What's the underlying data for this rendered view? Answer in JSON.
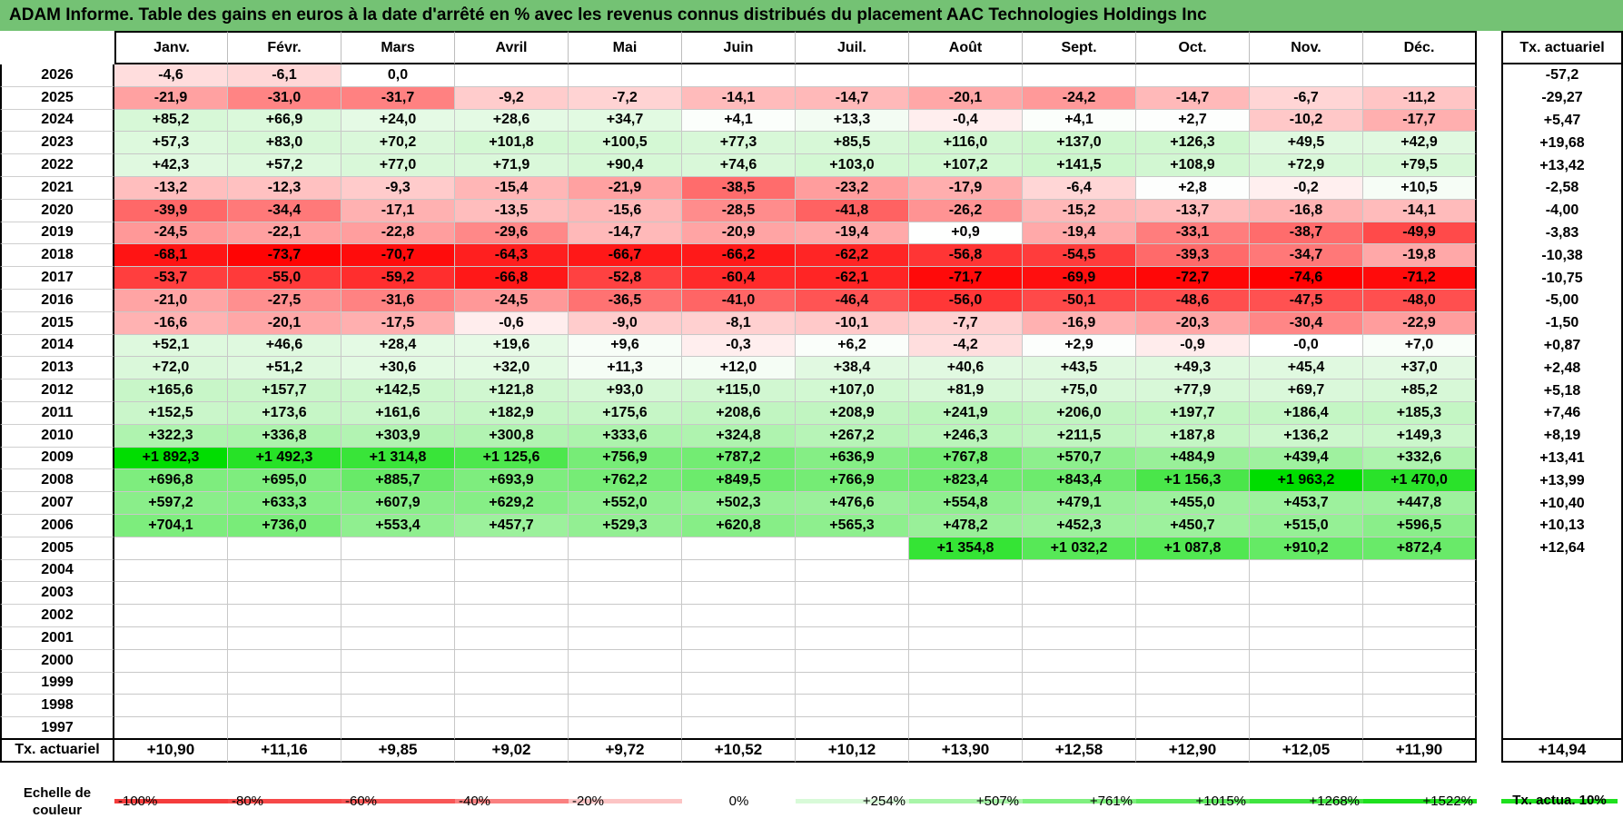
{
  "title": "ADAM Informe. Table des gains en euros à la date d'arrêté en % avec les revenus connus distribués du placement AAC Technologies Holdings Inc",
  "months": [
    "Janv.",
    "Févr.",
    "Mars",
    "Avril",
    "Mai",
    "Juin",
    "Juil.",
    "Août",
    "Sept.",
    "Oct.",
    "Nov.",
    "Déc."
  ],
  "total_header": "Tx. actuariel",
  "rows": [
    {
      "year": "2026",
      "values": [
        "-4,6",
        "-6,1",
        "0,0",
        "",
        "",
        "",
        "",
        "",
        "",
        "",
        "",
        ""
      ],
      "total": "-57,2"
    },
    {
      "year": "2025",
      "values": [
        "-21,9",
        "-31,0",
        "-31,7",
        "-9,2",
        "-7,2",
        "-14,1",
        "-14,7",
        "-20,1",
        "-24,2",
        "-14,7",
        "-6,7",
        "-11,2"
      ],
      "total": "-29,27"
    },
    {
      "year": "2024",
      "values": [
        "+85,2",
        "+66,9",
        "+24,0",
        "+28,6",
        "+34,7",
        "+4,1",
        "+13,3",
        "-0,4",
        "+4,1",
        "+2,7",
        "-10,2",
        "-17,7"
      ],
      "total": "+5,47"
    },
    {
      "year": "2023",
      "values": [
        "+57,3",
        "+83,0",
        "+70,2",
        "+101,8",
        "+100,5",
        "+77,3",
        "+85,5",
        "+116,0",
        "+137,0",
        "+126,3",
        "+49,5",
        "+42,9"
      ],
      "total": "+19,68"
    },
    {
      "year": "2022",
      "values": [
        "+42,3",
        "+57,2",
        "+77,0",
        "+71,9",
        "+90,4",
        "+74,6",
        "+103,0",
        "+107,2",
        "+141,5",
        "+108,9",
        "+72,9",
        "+79,5"
      ],
      "total": "+13,42"
    },
    {
      "year": "2021",
      "values": [
        "-13,2",
        "-12,3",
        "-9,3",
        "-15,4",
        "-21,9",
        "-38,5",
        "-23,2",
        "-17,9",
        "-6,4",
        "+2,8",
        "-0,2",
        "+10,5"
      ],
      "total": "-2,58"
    },
    {
      "year": "2020",
      "values": [
        "-39,9",
        "-34,4",
        "-17,1",
        "-13,5",
        "-15,6",
        "-28,5",
        "-41,8",
        "-26,2",
        "-15,2",
        "-13,7",
        "-16,8",
        "-14,1"
      ],
      "total": "-4,00"
    },
    {
      "year": "2019",
      "values": [
        "-24,5",
        "-22,1",
        "-22,8",
        "-29,6",
        "-14,7",
        "-20,9",
        "-19,4",
        "+0,9",
        "-19,4",
        "-33,1",
        "-38,7",
        "-49,9"
      ],
      "total": "-3,83"
    },
    {
      "year": "2018",
      "values": [
        "-68,1",
        "-73,7",
        "-70,7",
        "-64,3",
        "-66,7",
        "-66,2",
        "-62,2",
        "-56,8",
        "-54,5",
        "-39,3",
        "-34,7",
        "-19,8"
      ],
      "total": "-10,38"
    },
    {
      "year": "2017",
      "values": [
        "-53,7",
        "-55,0",
        "-59,2",
        "-66,8",
        "-52,8",
        "-60,4",
        "-62,1",
        "-71,7",
        "-69,9",
        "-72,7",
        "-74,6",
        "-71,2"
      ],
      "total": "-10,75"
    },
    {
      "year": "2016",
      "values": [
        "-21,0",
        "-27,5",
        "-31,6",
        "-24,5",
        "-36,5",
        "-41,0",
        "-46,4",
        "-56,0",
        "-50,1",
        "-48,6",
        "-47,5",
        "-48,0"
      ],
      "total": "-5,00"
    },
    {
      "year": "2015",
      "values": [
        "-16,6",
        "-20,1",
        "-17,5",
        "-0,6",
        "-9,0",
        "-8,1",
        "-10,1",
        "-7,7",
        "-16,9",
        "-20,3",
        "-30,4",
        "-22,9"
      ],
      "total": "-1,50"
    },
    {
      "year": "2014",
      "values": [
        "+52,1",
        "+46,6",
        "+28,4",
        "+19,6",
        "+9,6",
        "-0,3",
        "+6,2",
        "-4,2",
        "+2,9",
        "-0,9",
        "-0,0",
        "+7,0"
      ],
      "total": "+0,87"
    },
    {
      "year": "2013",
      "values": [
        "+72,0",
        "+51,2",
        "+30,6",
        "+32,0",
        "+11,3",
        "+12,0",
        "+38,4",
        "+40,6",
        "+43,5",
        "+49,3",
        "+45,4",
        "+37,0"
      ],
      "total": "+2,48"
    },
    {
      "year": "2012",
      "values": [
        "+165,6",
        "+157,7",
        "+142,5",
        "+121,8",
        "+93,0",
        "+115,0",
        "+107,0",
        "+81,9",
        "+75,0",
        "+77,9",
        "+69,7",
        "+85,2"
      ],
      "total": "+5,18"
    },
    {
      "year": "2011",
      "values": [
        "+152,5",
        "+173,6",
        "+161,6",
        "+182,9",
        "+175,6",
        "+208,6",
        "+208,9",
        "+241,9",
        "+206,0",
        "+197,7",
        "+186,4",
        "+185,3"
      ],
      "total": "+7,46"
    },
    {
      "year": "2010",
      "values": [
        "+322,3",
        "+336,8",
        "+303,9",
        "+300,8",
        "+333,6",
        "+324,8",
        "+267,2",
        "+246,3",
        "+211,5",
        "+187,8",
        "+136,2",
        "+149,3"
      ],
      "total": "+8,19"
    },
    {
      "year": "2009",
      "values": [
        "+1 892,3",
        "+1 492,3",
        "+1 314,8",
        "+1 125,6",
        "+756,9",
        "+787,2",
        "+636,9",
        "+767,8",
        "+570,7",
        "+484,9",
        "+439,4",
        "+332,6"
      ],
      "total": "+13,41"
    },
    {
      "year": "2008",
      "values": [
        "+696,8",
        "+695,0",
        "+885,7",
        "+693,9",
        "+762,2",
        "+849,5",
        "+766,9",
        "+823,4",
        "+843,4",
        "+1 156,3",
        "+1 963,2",
        "+1 470,0"
      ],
      "total": "+13,99"
    },
    {
      "year": "2007",
      "values": [
        "+597,2",
        "+633,3",
        "+607,9",
        "+629,2",
        "+552,0",
        "+502,3",
        "+476,6",
        "+554,8",
        "+479,1",
        "+455,0",
        "+453,7",
        "+447,8"
      ],
      "total": "+10,40"
    },
    {
      "year": "2006",
      "values": [
        "+704,1",
        "+736,0",
        "+553,4",
        "+457,7",
        "+529,3",
        "+620,8",
        "+565,3",
        "+478,2",
        "+452,3",
        "+450,7",
        "+515,0",
        "+596,5"
      ],
      "total": "+10,13"
    },
    {
      "year": "2005",
      "values": [
        "",
        "",
        "",
        "",
        "",
        "",
        "",
        "+1 354,8",
        "+1 032,2",
        "+1 087,8",
        "+910,2",
        "+872,4"
      ],
      "total": "+12,64"
    },
    {
      "year": "2004",
      "values": [
        "",
        "",
        "",
        "",
        "",
        "",
        "",
        "",
        "",
        "",
        "",
        ""
      ],
      "total": ""
    },
    {
      "year": "2003",
      "values": [
        "",
        "",
        "",
        "",
        "",
        "",
        "",
        "",
        "",
        "",
        "",
        ""
      ],
      "total": ""
    },
    {
      "year": "2002",
      "values": [
        "",
        "",
        "",
        "",
        "",
        "",
        "",
        "",
        "",
        "",
        "",
        ""
      ],
      "total": ""
    },
    {
      "year": "2001",
      "values": [
        "",
        "",
        "",
        "",
        "",
        "",
        "",
        "",
        "",
        "",
        "",
        ""
      ],
      "total": ""
    },
    {
      "year": "2000",
      "values": [
        "",
        "",
        "",
        "",
        "",
        "",
        "",
        "",
        "",
        "",
        "",
        ""
      ],
      "total": ""
    },
    {
      "year": "1999",
      "values": [
        "",
        "",
        "",
        "",
        "",
        "",
        "",
        "",
        "",
        "",
        "",
        ""
      ],
      "total": ""
    },
    {
      "year": "1998",
      "values": [
        "",
        "",
        "",
        "",
        "",
        "",
        "",
        "",
        "",
        "",
        "",
        ""
      ],
      "total": ""
    },
    {
      "year": "1997",
      "values": [
        "",
        "",
        "",
        "",
        "",
        "",
        "",
        "",
        "",
        "",
        "",
        ""
      ],
      "total": ""
    }
  ],
  "footer": {
    "label": "Tx. actuariel",
    "values": [
      "+10,90",
      "+11,16",
      "+9,85",
      "+9,02",
      "+9,72",
      "+10,52",
      "+10,12",
      "+13,90",
      "+12,58",
      "+12,90",
      "+12,05",
      "+11,90"
    ],
    "total": "+14,94"
  },
  "scale": {
    "label": "Echelle de couleur",
    "items": [
      {
        "text": "-100%",
        "color": "#f53c3c"
      },
      {
        "text": "-80%",
        "color": "#f64848"
      },
      {
        "text": "-60%",
        "color": "#f85656"
      },
      {
        "text": "-40%",
        "color": "#fa8080"
      },
      {
        "text": "-20%",
        "color": "#fcc4c4"
      },
      {
        "text": "0%",
        "color": "#ffffff"
      },
      {
        "text": "+254%",
        "color": "#d8fad8"
      },
      {
        "text": "+507%",
        "color": "#a8f5a8"
      },
      {
        "text": "+761%",
        "color": "#80f080"
      },
      {
        "text": "+1015%",
        "color": "#5eea5e"
      },
      {
        "text": "+1268%",
        "color": "#40e440"
      },
      {
        "text": "+1522%",
        "color": "#1ee01e"
      }
    ],
    "tx_label": "Tx. actua. 10%",
    "tx_color": "#1ee01e"
  }
}
